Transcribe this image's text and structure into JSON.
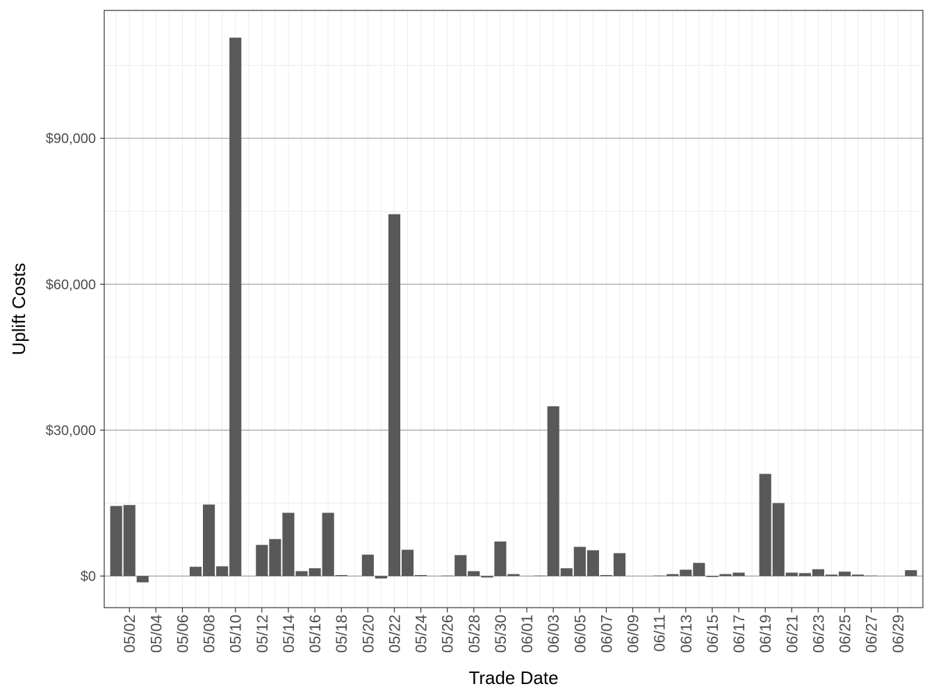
{
  "chart_data": {
    "type": "bar",
    "x_label": "Trade Date",
    "y_label": "Uplift Costs",
    "categories": [
      null,
      "05/02",
      null,
      "05/04",
      null,
      "05/06",
      null,
      "05/08",
      null,
      "05/10",
      null,
      "05/12",
      null,
      "05/14",
      null,
      "05/16",
      null,
      "05/18",
      null,
      "05/20",
      null,
      "05/22",
      null,
      "05/24",
      null,
      "05/26",
      null,
      "05/28",
      null,
      "05/30",
      null,
      "06/01",
      null,
      "06/03",
      null,
      "06/05",
      null,
      "06/07",
      null,
      "06/09",
      null,
      "06/11",
      null,
      "06/13",
      null,
      "06/15",
      null,
      "06/17",
      null,
      "06/19",
      null,
      "06/21",
      null,
      "06/23",
      null,
      "06/25",
      null,
      "06/27",
      null,
      "06/29",
      null
    ],
    "values": [
      14400,
      14600,
      -1300,
      0,
      0,
      0,
      1900,
      14700,
      2000,
      110700,
      0,
      6400,
      7600,
      13000,
      1000,
      1600,
      13000,
      200,
      0,
      4400,
      -500,
      74400,
      5400,
      200,
      0,
      100,
      4300,
      1000,
      -300,
      7100,
      400,
      0,
      100,
      34900,
      1600,
      6000,
      5300,
      200,
      4700,
      0,
      0,
      100,
      400,
      1300,
      2700,
      -200,
      400,
      700,
      0,
      21000,
      15000,
      700,
      600,
      1400,
      300,
      900,
      300,
      100,
      0,
      0,
      1200
    ],
    "color": "#595959",
    "ylim": [
      -6500,
      116300
    ],
    "yticks": [
      {
        "value": 0,
        "label": "$0"
      },
      {
        "value": 30000,
        "label": "$30,000"
      },
      {
        "value": 60000,
        "label": "$60,000"
      },
      {
        "value": 90000,
        "label": "$90,000"
      }
    ],
    "grid": true
  }
}
